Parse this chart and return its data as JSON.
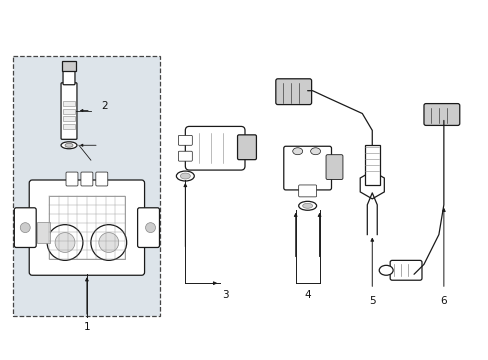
{
  "background_color": "#ffffff",
  "fig_width": 4.89,
  "fig_height": 3.6,
  "dpi": 100,
  "line_color": "#1a1a1a",
  "box_fill": "#dde4ea",
  "box_border": "#555555"
}
